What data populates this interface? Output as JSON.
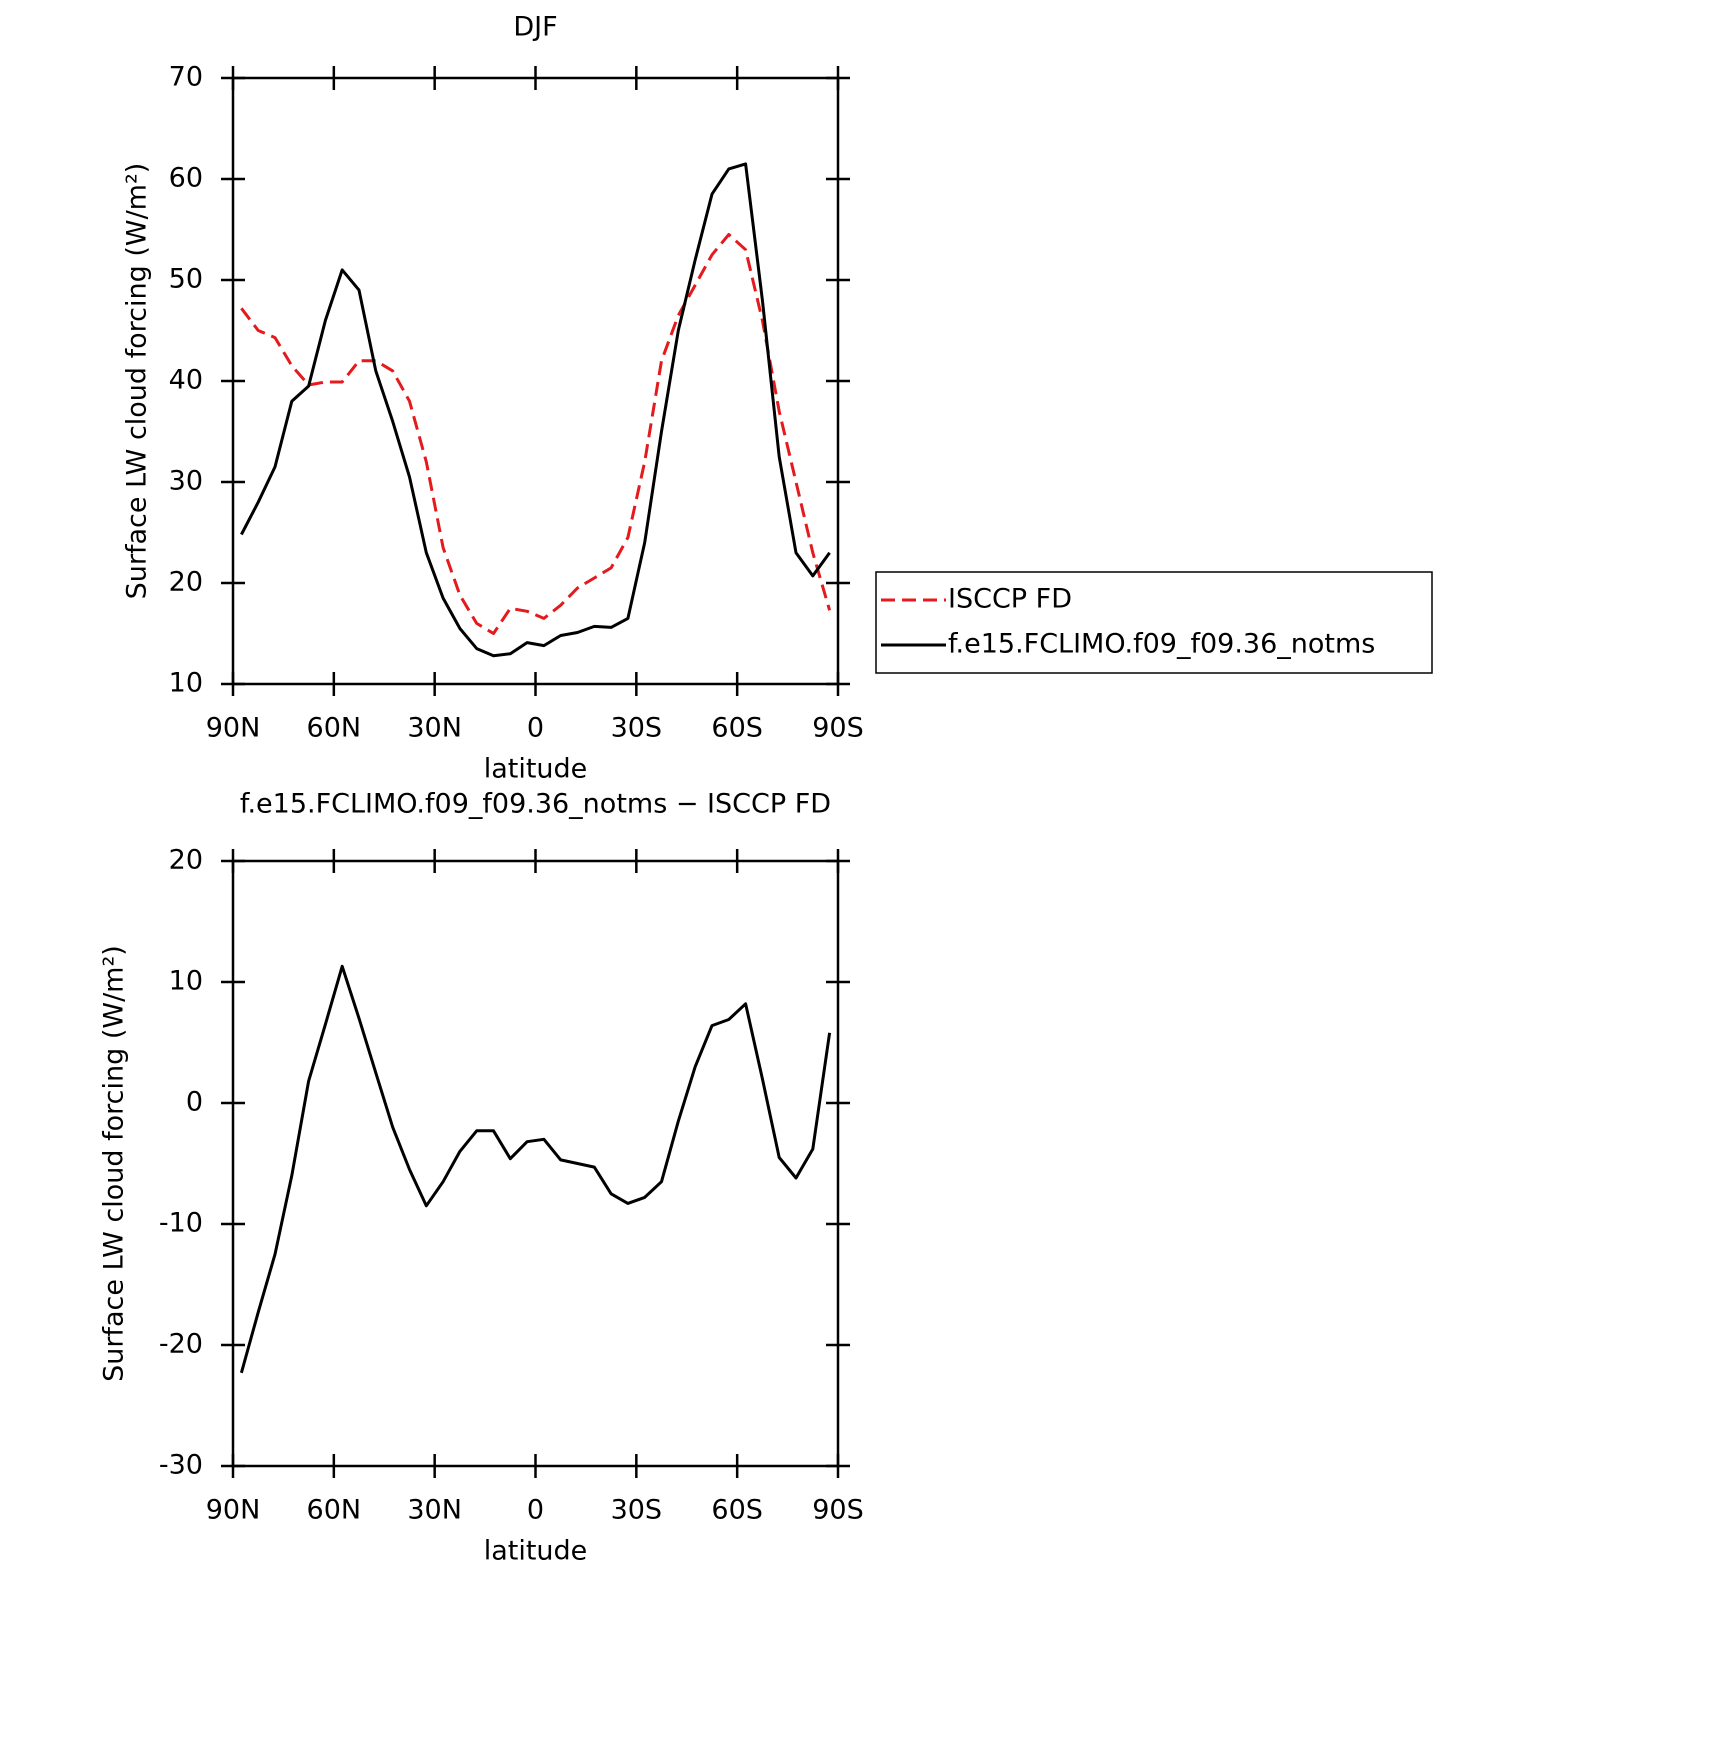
{
  "chart_data": [
    {
      "type": "line",
      "title": "DJF",
      "xlabel": "latitude",
      "ylabel": "Surface LW cloud forcing (W/m²)",
      "x": [
        87.5,
        82.5,
        77.5,
        72.5,
        67.5,
        62.5,
        57.5,
        52.5,
        47.5,
        42.5,
        37.5,
        32.5,
        27.5,
        22.5,
        17.5,
        12.5,
        7.5,
        2.5,
        -2.5,
        -7.5,
        -12.5,
        -17.5,
        -22.5,
        -27.5,
        -32.5,
        -37.5,
        -42.5,
        -47.5,
        -52.5,
        -57.5,
        -62.5,
        -67.5,
        -72.5,
        -77.5,
        -82.5,
        -87.5
      ],
      "series": [
        {
          "name": "ISCCP FD",
          "color": "#e41a1c",
          "dashed": true,
          "values": [
            47.2,
            45,
            44.3,
            41.5,
            39.6,
            39.9,
            39.9,
            42,
            42,
            41,
            38,
            32,
            23.5,
            18.8,
            16,
            15,
            17.5,
            17.2,
            16.5,
            17.8,
            19.5,
            20.5,
            21.5,
            24.5,
            32,
            42,
            46.5,
            49.5,
            52.5,
            54.5,
            53,
            46,
            37,
            30,
            23,
            17.3
          ]
        },
        {
          "name": "f.e15.FCLIMO.f09_f09.36_notms",
          "color": "#000000",
          "dashed": false,
          "values": [
            24.8,
            28,
            31.5,
            38,
            39.5,
            46,
            51,
            49,
            41,
            36,
            30.5,
            23,
            18.5,
            15.5,
            13.5,
            12.8,
            13,
            14.1,
            13.8,
            14.8,
            15.1,
            15.7,
            15.6,
            16.5,
            24,
            35,
            45,
            52,
            58.5,
            61,
            61.5,
            48,
            32.5,
            23,
            20.7,
            23
          ]
        }
      ],
      "xlim": [
        90,
        -90
      ],
      "xticks": [
        {
          "value": 90,
          "label": "90N"
        },
        {
          "value": 60,
          "label": "60N"
        },
        {
          "value": 30,
          "label": "30N"
        },
        0,
        {
          "value": -30,
          "label": "30S"
        },
        {
          "value": -60,
          "label": "60S"
        },
        {
          "value": -90,
          "label": "90S"
        }
      ],
      "ylim": [
        10,
        70
      ],
      "yticks": [
        10,
        20,
        30,
        40,
        50,
        60,
        70
      ],
      "legend": "outside-right"
    },
    {
      "type": "line",
      "title": "f.e15.FCLIMO.f09_f09.36_notms − ISCCP FD",
      "xlabel": "latitude",
      "ylabel": "Surface LW cloud forcing (W/m²)",
      "x": [
        87.5,
        82.5,
        77.5,
        72.5,
        67.5,
        62.5,
        57.5,
        52.5,
        47.5,
        42.5,
        37.5,
        32.5,
        27.5,
        22.5,
        17.5,
        12.5,
        7.5,
        2.5,
        -2.5,
        -7.5,
        -12.5,
        -17.5,
        -22.5,
        -27.5,
        -32.5,
        -37.5,
        -42.5,
        -47.5,
        -52.5,
        -57.5,
        -62.5,
        -67.5,
        -72.5,
        -77.5,
        -82.5,
        -87.5
      ],
      "color": "#000000",
      "values": [
        -22.3,
        -17.3,
        -12.5,
        -6,
        1.8,
        6.5,
        11.3,
        7,
        2.5,
        -2,
        -5.5,
        -8.5,
        -6.5,
        -4,
        -2.3,
        -2.3,
        -4.6,
        -3.2,
        -3,
        -4.7,
        -5,
        -5.3,
        -7.5,
        -8.3,
        -7.8,
        -6.5,
        -1.5,
        3,
        6.4,
        6.9,
        8.2,
        2,
        -4.5,
        -6.2,
        -3.8,
        5.8
      ],
      "xlim": [
        90,
        -90
      ],
      "xticks": [
        {
          "value": 90,
          "label": "90N"
        },
        {
          "value": 60,
          "label": "60N"
        },
        {
          "value": 30,
          "label": "30N"
        },
        0,
        {
          "value": -30,
          "label": "30S"
        },
        {
          "value": -60,
          "label": "60S"
        },
        {
          "value": -90,
          "label": "90S"
        }
      ],
      "ylim": [
        -30,
        20
      ],
      "yticks": [
        -30,
        -20,
        -10,
        0,
        10,
        20
      ]
    }
  ]
}
